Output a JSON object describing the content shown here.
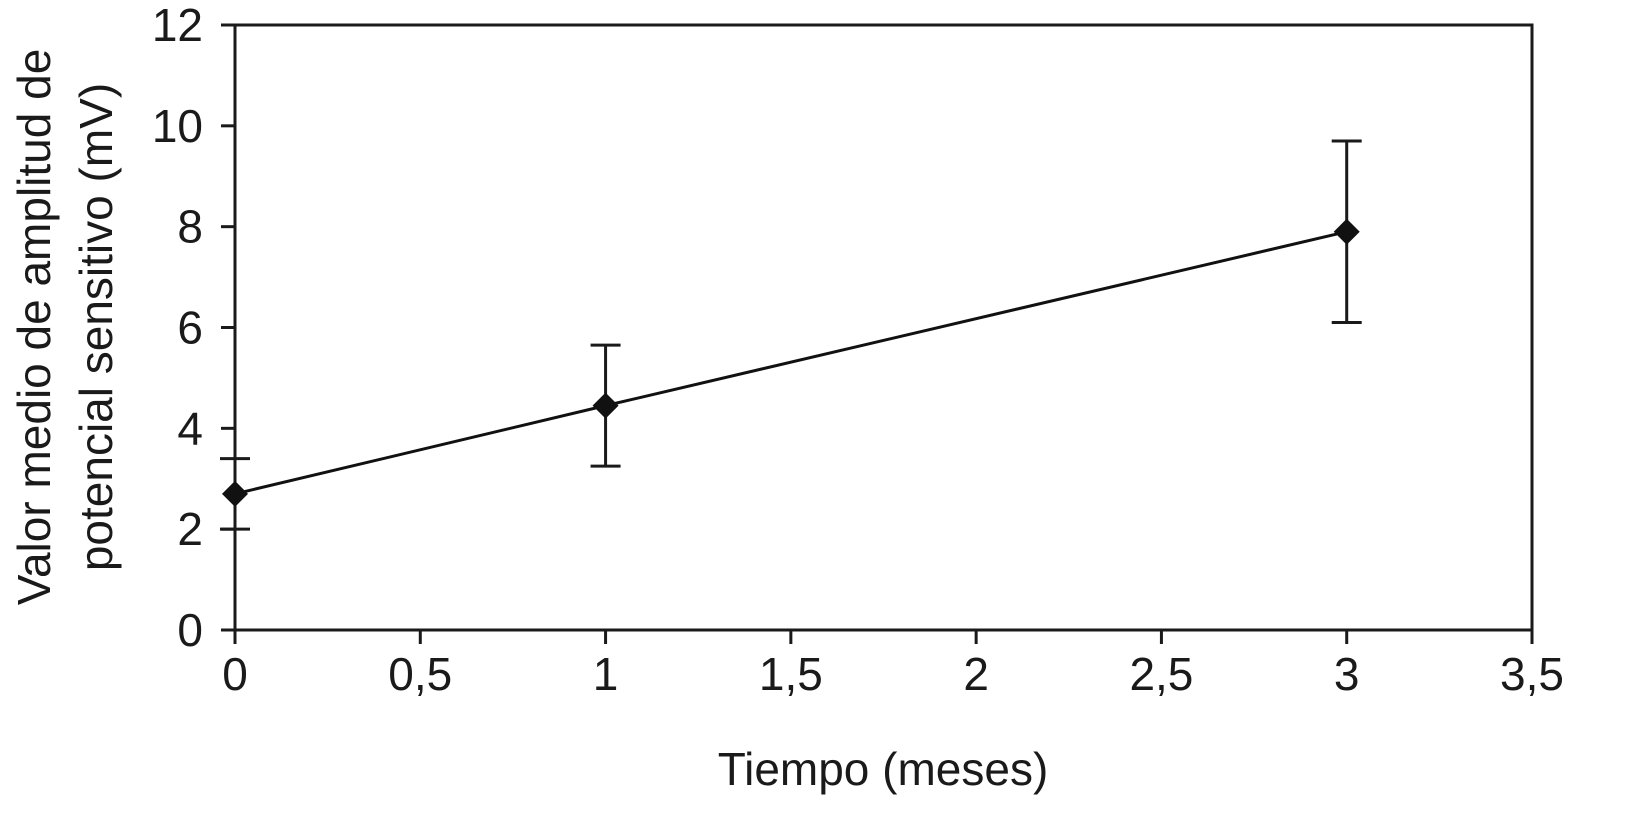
{
  "chart_data": {
    "type": "line",
    "title": "",
    "xlabel": "Tiempo (meses)",
    "ylabel_lines": [
      "Valor medio de amplitud de",
      "potencial sensitivo (mV)"
    ],
    "xlim": [
      0,
      3.5
    ],
    "ylim": [
      0,
      12
    ],
    "x_ticks": [
      0,
      0.5,
      1,
      1.5,
      2,
      2.5,
      3,
      3.5
    ],
    "x_tick_labels": [
      "0",
      "0,5",
      "1",
      "1,5",
      "2",
      "2,5",
      "3",
      "3,5"
    ],
    "y_ticks": [
      0,
      2,
      4,
      6,
      8,
      10,
      12
    ],
    "y_tick_labels": [
      "0",
      "2",
      "4",
      "6",
      "8",
      "10",
      "12"
    ],
    "grid": false,
    "legend": "none",
    "marker": "diamond",
    "color": "#111111",
    "series": [
      {
        "x": [
          0,
          1,
          3
        ],
        "y": [
          2.7,
          4.45,
          7.9
        ],
        "err_low": [
          2.0,
          3.25,
          6.1
        ],
        "err_high": [
          3.4,
          5.65,
          9.7
        ]
      }
    ]
  }
}
